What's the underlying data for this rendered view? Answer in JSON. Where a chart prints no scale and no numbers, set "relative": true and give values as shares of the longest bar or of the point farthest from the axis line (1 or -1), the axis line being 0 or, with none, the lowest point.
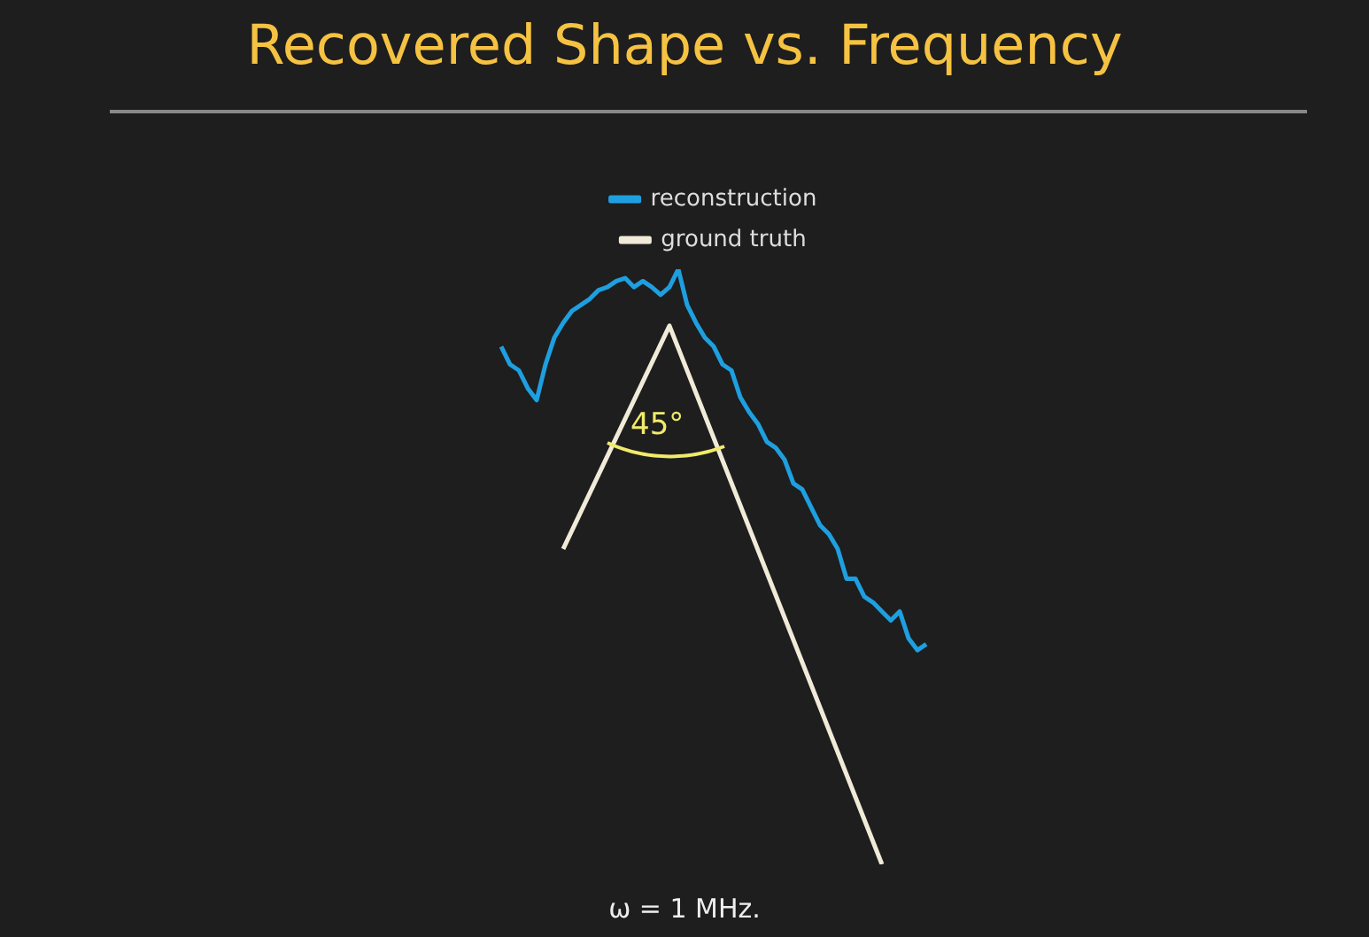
{
  "chart_data": {
    "type": "line",
    "title": "Recovered Shape vs. Frequency",
    "relative": true,
    "legend": "top",
    "categories": [
      null,
      null,
      null,
      null,
      null,
      null,
      null,
      null,
      null,
      null,
      null,
      null,
      null,
      null,
      null,
      null,
      null,
      null,
      null,
      null,
      null,
      null,
      null,
      null,
      null,
      null,
      null,
      null,
      null,
      null,
      null,
      null,
      null,
      null,
      null,
      null,
      null,
      null,
      null,
      null,
      null,
      null,
      null,
      null,
      null,
      null,
      null,
      null,
      null
    ],
    "series": [
      {
        "name": "reconstruction",
        "color": "#1e9fe0",
        "values": [
          0.87,
          0.84,
          0.83,
          0.8,
          0.78,
          0.84,
          0.885,
          0.91,
          0.93,
          0.94,
          0.95,
          0.965,
          0.97,
          0.98,
          0.985,
          0.97,
          0.98,
          0.97,
          0.957,
          0.97,
          1,
          0.94,
          0.91,
          0.885,
          0.87,
          0.84,
          0.83,
          0.785,
          0.76,
          0.74,
          0.71,
          0.7,
          0.68,
          0.64,
          0.63,
          0.6,
          0.57,
          0.555,
          0.53,
          0.48,
          0.48,
          0.45,
          0.44,
          0.425,
          0.41,
          0.425,
          0.38,
          0.36,
          0.37
        ]
      },
      {
        "name": "ground truth",
        "color": "#f0ead8",
        "values": [
          null,
          null,
          null,
          null,
          null,
          null,
          null,
          0.53,
          null,
          null,
          null,
          null,
          null,
          null,
          null,
          null,
          null,
          null,
          null,
          0.905,
          null,
          null,
          null,
          null,
          null,
          null,
          null,
          null,
          null,
          null,
          null,
          null,
          null,
          null,
          null,
          null,
          null,
          null,
          null,
          null,
          null,
          null,
          null,
          0,
          null,
          null,
          null,
          null,
          null
        ]
      }
    ],
    "annotations": [
      "45°",
      "ω = 1 MHz."
    ]
  }
}
